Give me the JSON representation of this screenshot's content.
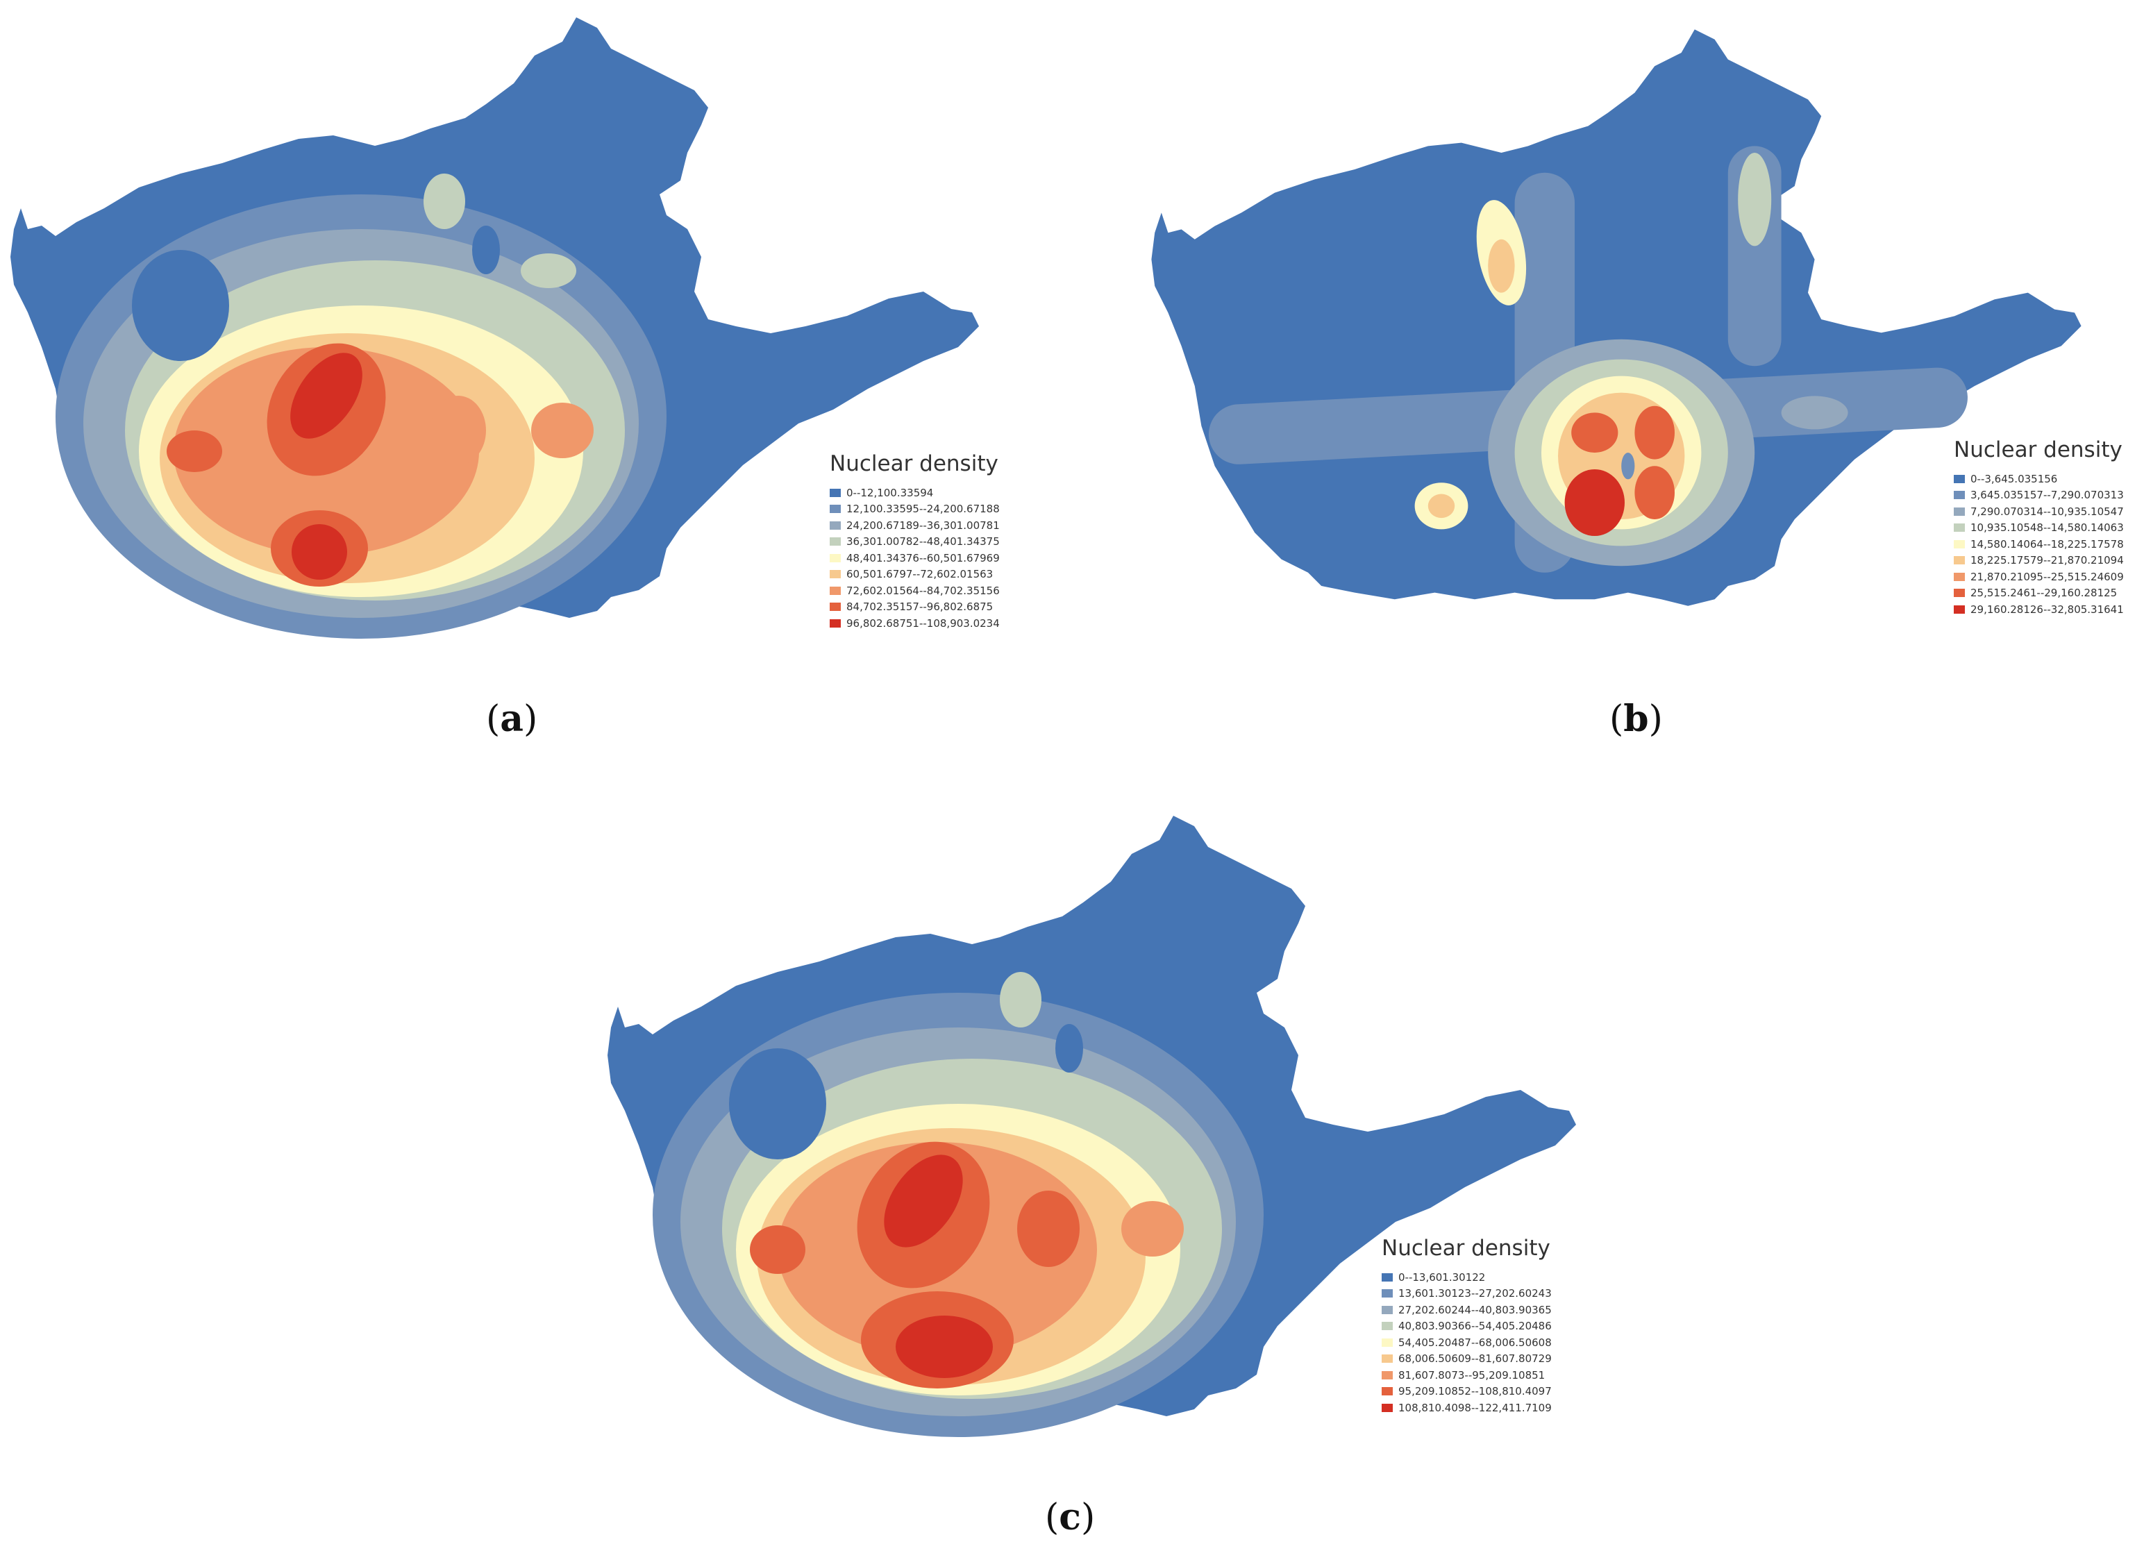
{
  "palette": [
    "#4575b4",
    "#6f8fba",
    "#94a8bd",
    "#c3d1bd",
    "#fdf8c4",
    "#f7c98e",
    "#f0986a",
    "#e4613d",
    "#d42f23"
  ],
  "panels": [
    {
      "id": "a",
      "caption_letter": "a",
      "legend_title": "Nuclear density",
      "classes": [
        "0--12,100.33594",
        "12,100.33595--24,200.67188",
        "24,200.67189--36,301.00781",
        "36,301.00782--48,401.34375",
        "48,401.34376--60,501.67969",
        "60,501.6797--72,602.01563",
        "72,602.01564--84,702.35156",
        "84,702.35157--96,802.6875",
        "96,802.68751--108,903.0234"
      ]
    },
    {
      "id": "b",
      "caption_letter": "b",
      "legend_title": "Nuclear density",
      "classes": [
        "0--3,645.035156",
        "3,645.035157--7,290.070313",
        "7,290.070314--10,935.10547",
        "10,935.10548--14,580.14063",
        "14,580.14064--18,225.17578",
        "18,225.17579--21,870.21094",
        "21,870.21095--25,515.24609",
        "25,515.2461--29,160.28125",
        "29,160.28126--32,805.31641"
      ]
    },
    {
      "id": "c",
      "caption_letter": "c",
      "legend_title": "Nuclear density",
      "classes": [
        "0--13,601.30122",
        "13,601.30123--27,202.60243",
        "27,202.60244--40,803.90365",
        "40,803.90366--54,405.20486",
        "54,405.20487--68,006.50608",
        "68,006.50609--81,607.80729",
        "81,607.8073--95,209.10851",
        "95,209.10852--108,810.4097",
        "108,810.4098--122,411.7109"
      ]
    }
  ]
}
